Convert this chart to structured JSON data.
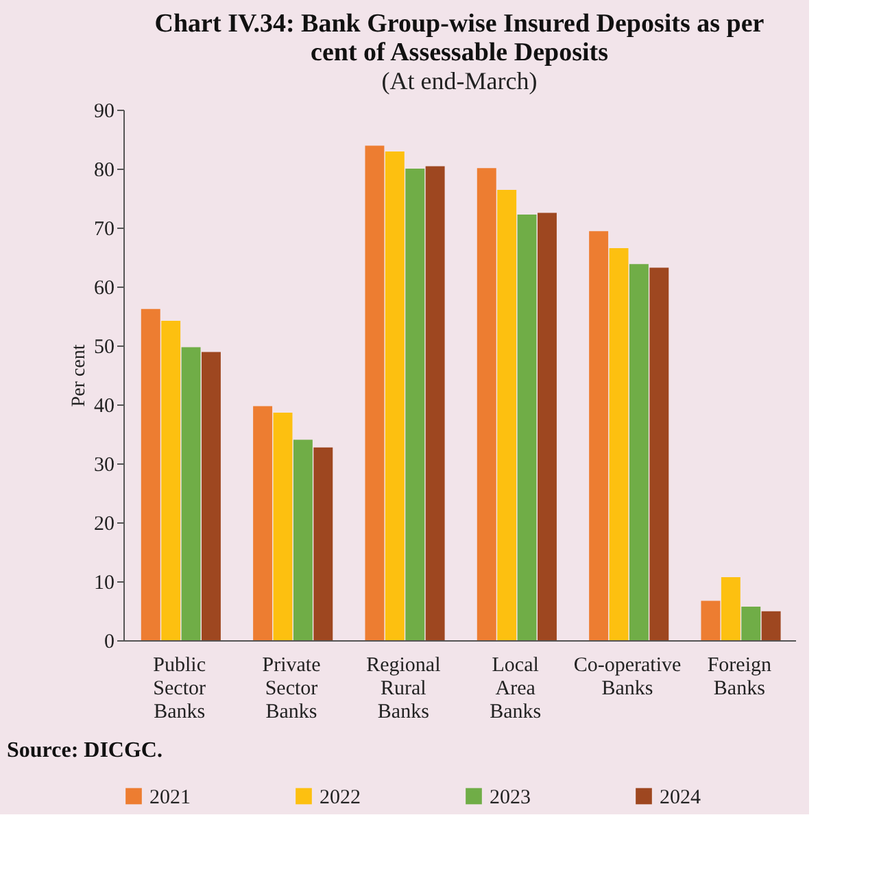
{
  "chart_data": {
    "type": "bar",
    "title": "Chart IV.34: Bank Group-wise Insured Deposits as per cent of Assessable Deposits",
    "subtitle": "(At end-March)",
    "ylabel": "Per cent",
    "categories": [
      "Public Sector Banks",
      "Private Sector Banks",
      "Regional Rural Banks",
      "Local Area Banks",
      "Co-operative Banks",
      "Foreign Banks"
    ],
    "series": [
      {
        "name": "2021",
        "color": "#ed7d31",
        "values": [
          56.2,
          39.7,
          83.9,
          80.1,
          69.4,
          6.7
        ]
      },
      {
        "name": "2022",
        "color": "#fdc010",
        "values": [
          54.2,
          38.6,
          82.9,
          76.4,
          66.5,
          10.7
        ]
      },
      {
        "name": "2023",
        "color": "#70ad47",
        "values": [
          49.7,
          34.0,
          80.0,
          72.2,
          63.8,
          5.7
        ]
      },
      {
        "name": "2024",
        "color": "#9e4720",
        "values": [
          48.9,
          32.7,
          80.4,
          72.5,
          63.2,
          4.9
        ]
      }
    ],
    "ylim": [
      0,
      90
    ],
    "yticks": [
      0,
      10,
      20,
      30,
      40,
      50,
      60,
      70,
      80,
      90
    ],
    "grid": false,
    "legend": "bottom",
    "annotations": [
      "Source: DICGC."
    ]
  }
}
